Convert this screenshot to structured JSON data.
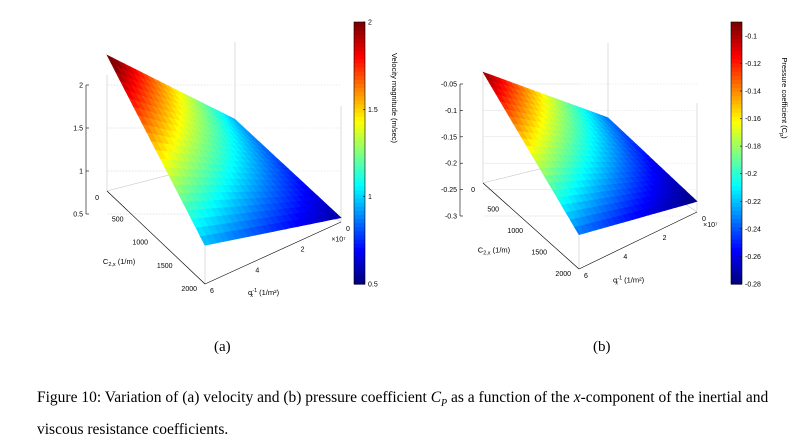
{
  "chart_data": [
    {
      "type": "surface",
      "panel": "(a)",
      "x": {
        "label_main": "α",
        "label_sub": "x",
        "label_sup": "-1",
        "label_unit": " (1/m²)",
        "range": [
          0,
          6
        ],
        "ticks": [
          "0",
          "2",
          "4",
          "6"
        ],
        "multiplier": "×10⁷"
      },
      "y": {
        "label_main": "C",
        "label_sub": "2,x",
        "label_unit": " (1/m)",
        "range": [
          0,
          2000
        ],
        "ticks": [
          "0",
          "500",
          "1000",
          "1500",
          "2000"
        ]
      },
      "z": {
        "range": [
          0.5,
          2
        ],
        "ticks": [
          "0.5",
          "1",
          "1.5",
          "2"
        ]
      },
      "colorbar": {
        "label": "Velocity magnitude (m/sec)",
        "ticks": [
          "0.5",
          "1",
          "1.5",
          "2"
        ],
        "range": [
          0.5,
          2
        ]
      },
      "corner_values": {
        "x0_y0": 2.08,
        "x0_y2000": 0.95,
        "x6_y0": 0.95,
        "x6_y2000": 0.55
      }
    },
    {
      "type": "surface",
      "panel": "(b)",
      "x": {
        "label_main": "α",
        "label_sub": "x",
        "label_sup": "-1",
        "label_unit": " (1/m²)",
        "range": [
          0,
          6
        ],
        "ticks": [
          "0",
          "2",
          "4",
          "6"
        ],
        "multiplier": "×10⁷"
      },
      "y": {
        "label_main": "C",
        "label_sub": "2,x",
        "label_unit": " (1/m)",
        "range": [
          0,
          2000
        ],
        "ticks": [
          "0",
          "500",
          "1000",
          "1500",
          "2000"
        ]
      },
      "z": {
        "range": [
          -0.3,
          -0.05
        ],
        "ticks": [
          "-0.3",
          "-0.25",
          "-0.2",
          "-0.15",
          "-0.1",
          "-0.05"
        ]
      },
      "colorbar": {
        "label": "Pressure coefficient (C",
        "label_sub": "p",
        "label_end": ")",
        "ticks": [
          "-0.1",
          "-0.12",
          "-0.14",
          "-0.16",
          "-0.18",
          "-0.2",
          "-0.22",
          "-0.24",
          "-0.26",
          "-0.28"
        ],
        "range": [
          -0.28,
          -0.09
        ]
      },
      "corner_values": {
        "x0_y0": -0.09,
        "x0_y2000": -0.235,
        "x6_y0": -0.235,
        "x6_y2000": -0.28
      }
    }
  ],
  "labels": {
    "a": "(a)",
    "b": "(b)"
  },
  "caption": {
    "prefix": "Figure 10:  Variation of (a) velocity and (b) pressure coefficient ",
    "var": "C",
    "var_sub": "P",
    "middle": " as a function of the ",
    "x_var": "x",
    "suffix": "-component of the inertial and viscous resistance coefficients."
  }
}
